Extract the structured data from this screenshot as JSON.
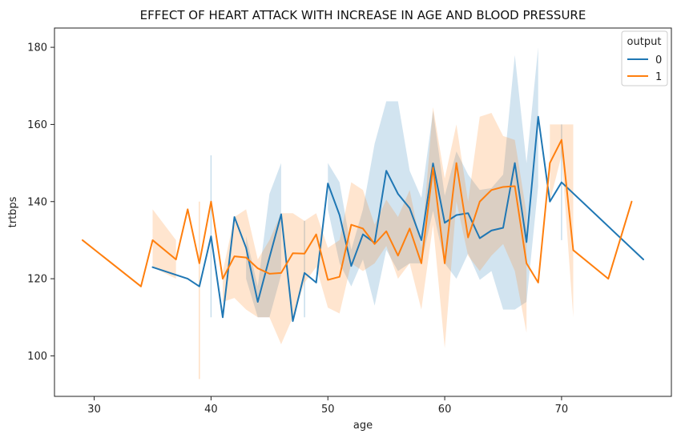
{
  "chart_data": {
    "type": "line",
    "title": "EFFECT OF HEART ATTACK WITH INCREASE IN AGE AND BLOOD PRESSURE",
    "xlabel": "age",
    "ylabel": "trtbps",
    "xlim": [
      26.6,
      79.4
    ],
    "ylim": [
      89.5,
      185
    ],
    "xticks": [
      30,
      40,
      50,
      60,
      70
    ],
    "yticks": [
      100,
      120,
      140,
      160,
      180
    ],
    "legend": {
      "title": "output",
      "position": "top-right"
    },
    "series": [
      {
        "name": "0",
        "color": "#1f77b4",
        "x": [
          35,
          38,
          39,
          40,
          41,
          42,
          43,
          44,
          45,
          46,
          47,
          48,
          49,
          50,
          51,
          52,
          53,
          54,
          55,
          56,
          57,
          58,
          59,
          60,
          61,
          62,
          63,
          64,
          65,
          66,
          67,
          68,
          69,
          70,
          77
        ],
        "y": [
          123,
          120,
          118,
          131,
          110,
          136,
          128,
          114,
          125.5,
          136.7,
          109,
          121.5,
          119,
          144.7,
          136.5,
          123.3,
          131.5,
          129.3,
          148,
          142,
          138.3,
          130,
          149.9,
          134.5,
          136.5,
          137,
          130.5,
          132.5,
          133.2,
          150,
          129.5,
          162,
          140,
          145,
          125
        ],
        "band_low": [
          null,
          null,
          null,
          110,
          null,
          null,
          120,
          110,
          110,
          121,
          null,
          110,
          null,
          138,
          124,
          118,
          125,
          113,
          127.5,
          122,
          124,
          124,
          137.6,
          124,
          120,
          126.5,
          119.7,
          122,
          112,
          112,
          114,
          144,
          null,
          130,
          null
        ],
        "band_high": [
          null,
          null,
          null,
          152,
          null,
          null,
          131,
          118,
          142,
          150,
          null,
          135,
          null,
          150,
          145,
          127.5,
          138,
          155,
          166,
          166,
          148,
          141,
          163.5,
          141.5,
          153,
          147,
          143,
          143.5,
          147,
          178,
          150,
          180,
          null,
          160,
          null
        ]
      },
      {
        "name": "1",
        "color": "#ff7f0e",
        "x": [
          29,
          34,
          35,
          37,
          38,
          39,
          40,
          41,
          42,
          43,
          44,
          45,
          46,
          47,
          48,
          49,
          50,
          51,
          52,
          53,
          54,
          55,
          56,
          57,
          58,
          59,
          60,
          61,
          62,
          63,
          64,
          65,
          66,
          67,
          68,
          69,
          70,
          71,
          74,
          76
        ],
        "y": [
          130,
          118,
          130,
          125,
          138,
          124,
          140,
          120,
          125.8,
          125.5,
          122.7,
          121.3,
          121.5,
          126.6,
          126.5,
          131.5,
          119.7,
          120.5,
          134,
          133,
          129,
          132.3,
          126,
          133,
          124,
          148.8,
          124,
          150,
          130.7,
          140,
          143,
          143.8,
          144,
          124,
          119,
          150,
          156,
          127.4,
          120,
          140
        ],
        "band_low": [
          null,
          null,
          123,
          120,
          null,
          94,
          null,
          114,
          115,
          112,
          110,
          110,
          103,
          110,
          119,
          123,
          112.5,
          111,
          124,
          122,
          124,
          128.5,
          120,
          124,
          112,
          134,
          102,
          140,
          126,
          122,
          126,
          129,
          122,
          106,
          null,
          140,
          152,
          110,
          null,
          null
        ],
        "band_high": [
          null,
          null,
          138,
          130,
          null,
          140,
          null,
          121.8,
          136,
          138,
          125,
          130,
          137,
          137,
          135,
          137,
          128,
          130,
          145,
          143,
          134,
          140.5,
          136,
          143,
          128,
          164.5,
          146,
          160,
          140,
          162,
          163,
          157,
          156,
          137,
          null,
          160,
          160,
          160,
          null,
          null
        ]
      }
    ]
  }
}
